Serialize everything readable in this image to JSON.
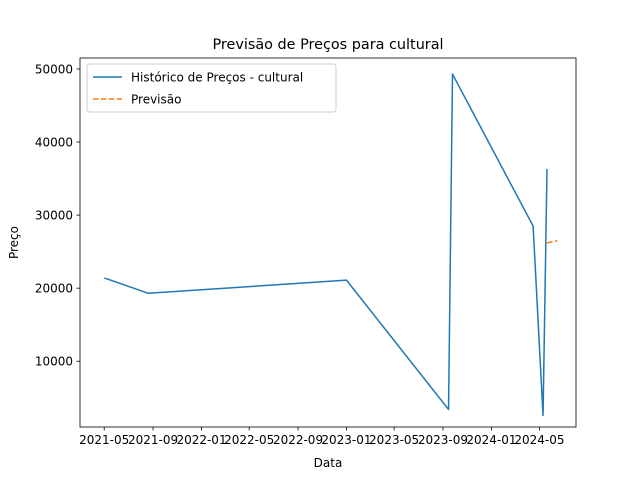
{
  "chart_data": {
    "type": "line",
    "title": "Previsão de Preços para cultural",
    "xlabel": "Data",
    "ylabel": "Preço",
    "x_range": [
      "2021-03-01",
      "2024-08-01"
    ],
    "y_range": [
      1000,
      51500
    ],
    "x_ticks": [
      "2021-05",
      "2021-09",
      "2022-01",
      "2022-05",
      "2022-09",
      "2023-01",
      "2023-05",
      "2023-09",
      "2024-01",
      "2024-05"
    ],
    "y_ticks": [
      10000,
      20000,
      30000,
      40000,
      50000
    ],
    "grid": false,
    "legend_position": "top-left",
    "series": [
      {
        "name": "Histórico de Preços - cultural",
        "style": "solid",
        "color": "#1f77b4",
        "points": [
          [
            "2021-05-01",
            21400
          ],
          [
            "2021-08-20",
            19300
          ],
          [
            "2023-01-01",
            21100
          ],
          [
            "2023-09-15",
            3400
          ],
          [
            "2023-09-25",
            49300
          ],
          [
            "2024-04-15",
            28500
          ],
          [
            "2024-05-10",
            2600
          ],
          [
            "2024-05-20",
            36300
          ]
        ]
      },
      {
        "name": "Previsão",
        "style": "dashed",
        "color": "#ff7f0e",
        "points": [
          [
            "2024-05-20",
            26200
          ],
          [
            "2024-06-15",
            26500
          ]
        ]
      }
    ]
  }
}
